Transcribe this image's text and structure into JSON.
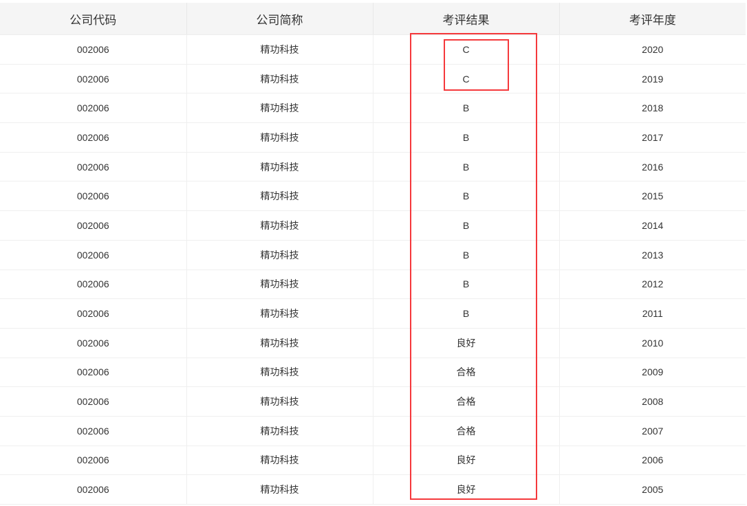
{
  "columns": [
    "公司代码",
    "公司简称",
    "考评结果",
    "考评年度"
  ],
  "rows": [
    [
      "002006",
      "精功科技",
      "C",
      "2020"
    ],
    [
      "002006",
      "精功科技",
      "C",
      "2019"
    ],
    [
      "002006",
      "精功科技",
      "B",
      "2018"
    ],
    [
      "002006",
      "精功科技",
      "B",
      "2017"
    ],
    [
      "002006",
      "精功科技",
      "B",
      "2016"
    ],
    [
      "002006",
      "精功科技",
      "B",
      "2015"
    ],
    [
      "002006",
      "精功科技",
      "B",
      "2014"
    ],
    [
      "002006",
      "精功科技",
      "B",
      "2013"
    ],
    [
      "002006",
      "精功科技",
      "B",
      "2012"
    ],
    [
      "002006",
      "精功科技",
      "B",
      "2011"
    ],
    [
      "002006",
      "精功科技",
      "良好",
      "2010"
    ],
    [
      "002006",
      "精功科技",
      "合格",
      "2009"
    ],
    [
      "002006",
      "精功科技",
      "合格",
      "2008"
    ],
    [
      "002006",
      "精功科技",
      "合格",
      "2007"
    ],
    [
      "002006",
      "精功科技",
      "良好",
      "2006"
    ],
    [
      "002006",
      "精功科技",
      "良好",
      "2005"
    ]
  ],
  "highlight_color": "#f5383b"
}
